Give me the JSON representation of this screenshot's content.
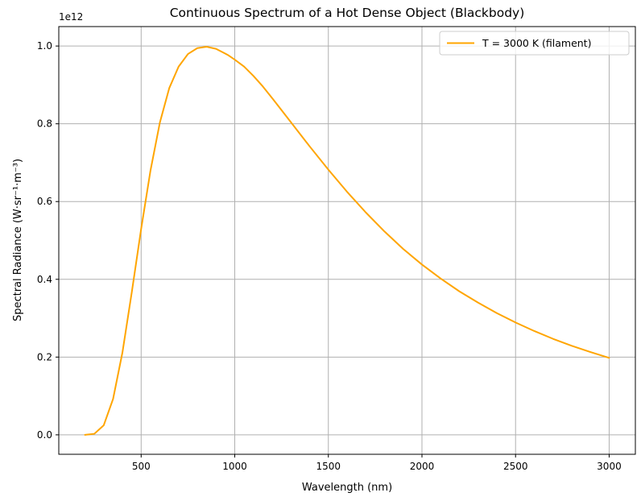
{
  "chart_data": {
    "type": "line",
    "title": "Continuous Spectrum of a Hot Dense Object (Blackbody)",
    "xlabel": "Wavelength (nm)",
    "ylabel": "Spectral Radiance (W·sr⁻¹·m⁻³)",
    "y_offset_label": "1e12",
    "y_scale": 1000000000000.0,
    "xlim": [
      60,
      3140
    ],
    "ylim": [
      -0.05,
      1.05
    ],
    "x_ticks": [
      500,
      1000,
      1500,
      2000,
      2500,
      3000
    ],
    "x_tick_labels": [
      "500",
      "1000",
      "1500",
      "2000",
      "2500",
      "3000"
    ],
    "y_ticks": [
      0.0,
      0.2,
      0.4,
      0.6,
      0.8,
      1.0
    ],
    "y_tick_labels": [
      "0.0",
      "0.2",
      "0.4",
      "0.6",
      "0.8",
      "1.0"
    ],
    "grid": true,
    "legend_position": "top-right",
    "series": [
      {
        "name": "T = 3000 K (filament)",
        "color": "#ffa500",
        "x": [
          200,
          250,
          300,
          350,
          400,
          450,
          500,
          550,
          600,
          650,
          700,
          750,
          800,
          850,
          900,
          950,
          966,
          1000,
          1050,
          1100,
          1150,
          1200,
          1300,
          1400,
          1500,
          1600,
          1700,
          1800,
          1900,
          2000,
          2100,
          2200,
          2300,
          2400,
          2500,
          2600,
          2700,
          2800,
          2900,
          3000
        ],
        "y": [
          6e-05,
          0.0027,
          0.0245,
          0.0923,
          0.2118,
          0.3669,
          0.5297,
          0.6802,
          0.8032,
          0.8916,
          0.9469,
          0.9794,
          0.9946,
          0.9981,
          0.9928,
          0.9804,
          0.9761,
          0.965,
          0.947,
          0.923,
          0.896,
          0.866,
          0.804,
          0.742,
          0.682,
          0.625,
          0.572,
          0.523,
          0.478,
          0.438,
          0.402,
          0.369,
          0.34,
          0.313,
          0.289,
          0.267,
          0.247,
          0.229,
          0.213,
          0.198
        ]
      }
    ]
  }
}
